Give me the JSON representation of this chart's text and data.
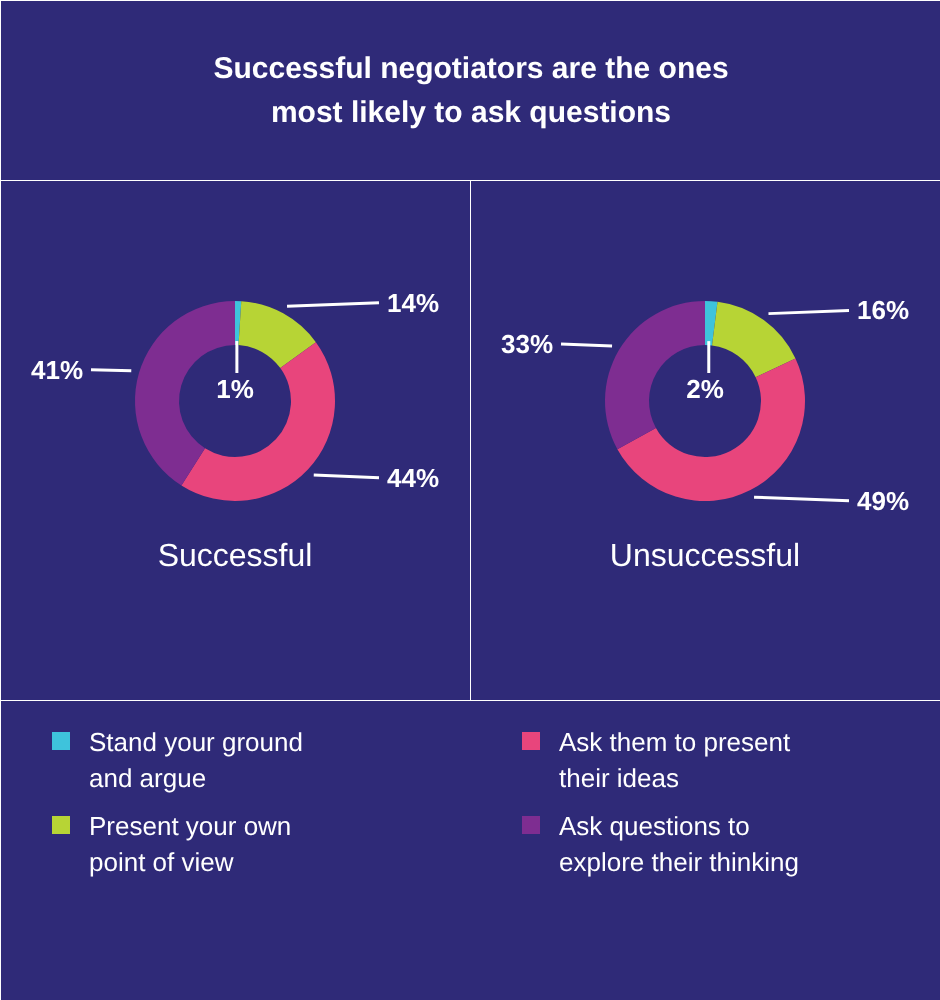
{
  "chart_data": [
    {
      "type": "donut",
      "title": "Successful negotiators are the ones\nmost likely to ask questions",
      "xlabel": "Successful",
      "categories": [
        "Stand your ground\nand argue",
        "Present your own\npoint of view",
        "Ask them to present\ntheir ideas",
        "Ask questions to\nexplore their thinking"
      ],
      "values": [
        1,
        14,
        44,
        41
      ],
      "value_labels": [
        "1%",
        "14%",
        "44%",
        "41%"
      ],
      "colors": [
        "#3ec3dc",
        "#b7d435",
        "#e8457c",
        "#7e2d91"
      ],
      "legend": "bottom"
    },
    {
      "type": "donut",
      "xlabel": "Unsuccessful",
      "categories": [
        null,
        null,
        null,
        null
      ],
      "values": [
        2,
        16,
        49,
        33
      ],
      "value_labels": [
        "2%",
        "16%",
        "49%",
        "33%"
      ],
      "colors": [
        "#3ec3dc",
        "#b7d435",
        "#e8457c",
        "#7e2d91"
      ]
    }
  ]
}
